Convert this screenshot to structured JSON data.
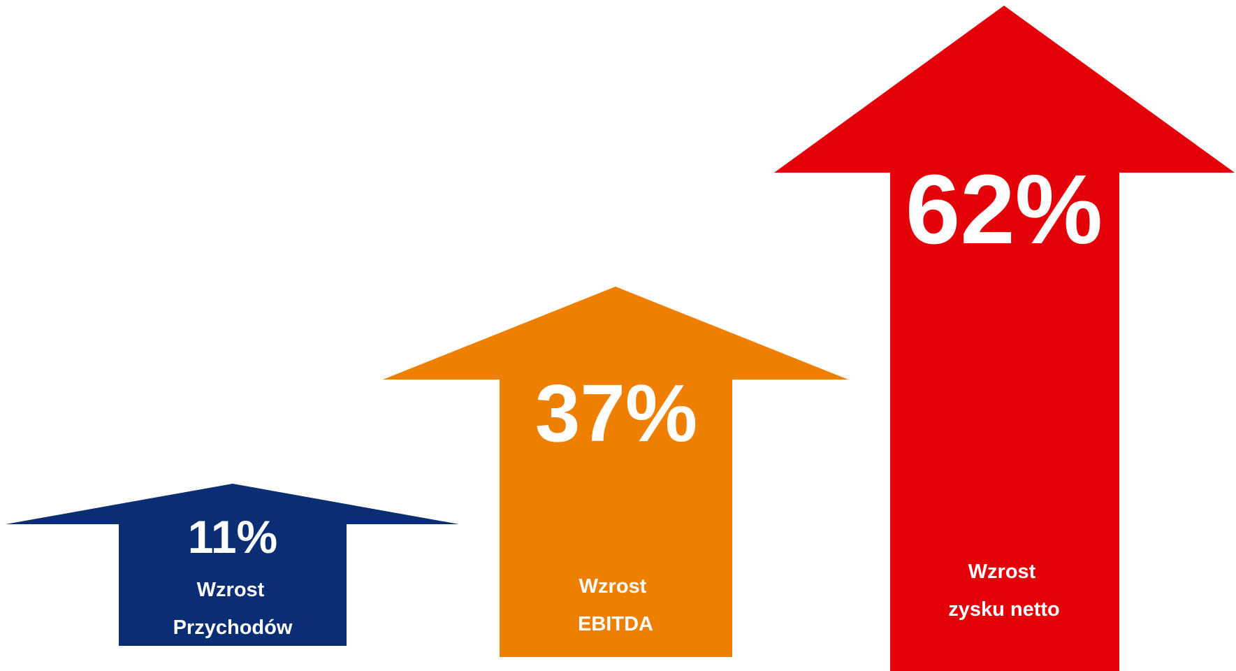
{
  "arrows": [
    {
      "value": "11%",
      "caption_line1": "Wzrost",
      "caption_line2": "Przychodów",
      "color": "#0a2d74"
    },
    {
      "value": "37%",
      "caption_line1": "Wzrost",
      "caption_line2": "EBITDA",
      "color": "#ee7f00"
    },
    {
      "value": "62%",
      "caption_line1": "Wzrost",
      "caption_line2": "zysku netto",
      "color": "#e30008"
    }
  ]
}
